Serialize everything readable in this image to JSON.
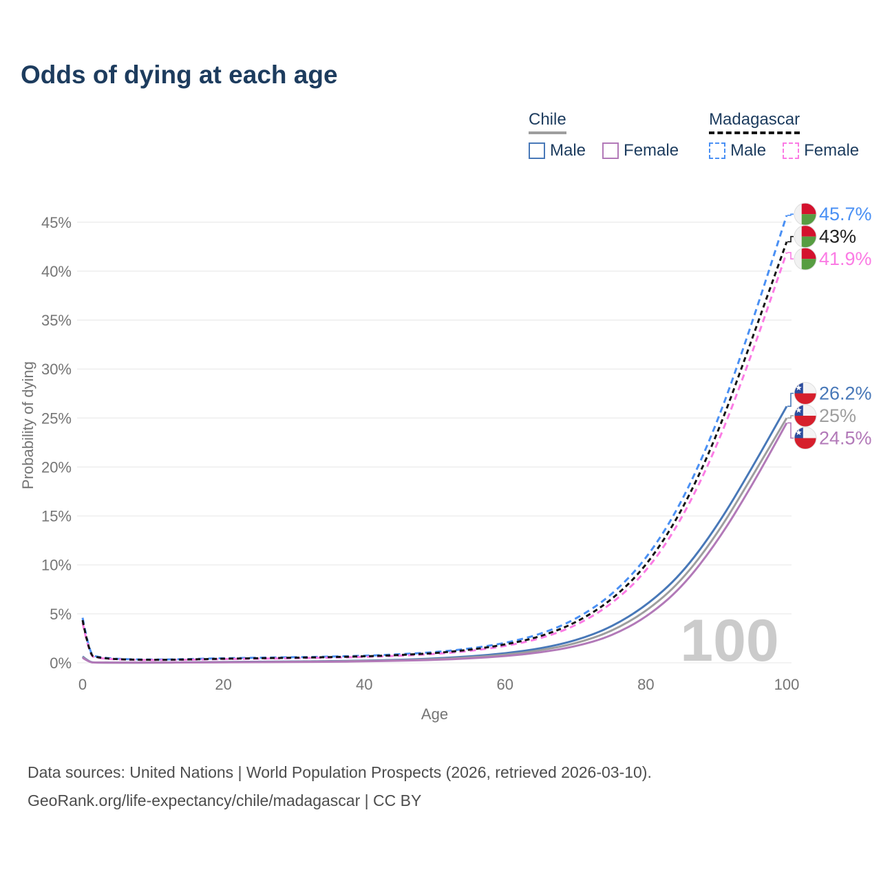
{
  "title": "Odds of dying at each age",
  "legend": {
    "groups": [
      {
        "name": "Chile",
        "line_style": "solid",
        "underline_color": "#9e9e9e",
        "items": [
          {
            "label": "Male",
            "color": "#4878b8"
          },
          {
            "label": "Female",
            "color": "#b279b8"
          }
        ]
      },
      {
        "name": "Madagascar",
        "line_style": "dashed",
        "underline_color": "#141414",
        "items": [
          {
            "label": "Male",
            "color": "#4a90f4"
          },
          {
            "label": "Female",
            "color": "#fb7be4"
          }
        ]
      }
    ]
  },
  "chart_data": {
    "type": "line",
    "title": "Odds of dying at each age",
    "xlabel": "Age",
    "ylabel": "Probability of dying",
    "xlim": [
      0,
      100
    ],
    "ylim": [
      0,
      47
    ],
    "xticks": [
      0,
      20,
      40,
      60,
      80,
      100
    ],
    "yticks": [
      0,
      5,
      10,
      15,
      20,
      25,
      30,
      35,
      40,
      45
    ],
    "ytick_suffix": "%",
    "grid": "horizontal",
    "watermark": "100",
    "x": [
      0,
      1,
      2,
      5,
      10,
      15,
      20,
      25,
      30,
      35,
      40,
      45,
      50,
      55,
      60,
      65,
      70,
      75,
      80,
      85,
      90,
      95,
      100
    ],
    "series": [
      {
        "name": "Madagascar Male",
        "country": "Madagascar",
        "sex": "Male",
        "color": "#4a90f4",
        "dash": "dashed",
        "flag": "madagascar",
        "end_label": "45.7%",
        "label_color": "#4a90f4",
        "values": [
          4.6,
          0.9,
          0.6,
          0.38,
          0.32,
          0.38,
          0.47,
          0.52,
          0.57,
          0.63,
          0.72,
          0.87,
          1.08,
          1.45,
          2.0,
          2.9,
          4.4,
          6.8,
          10.5,
          16.2,
          24.2,
          34.5,
          45.7
        ]
      },
      {
        "name": "Madagascar Both sexes",
        "country": "Madagascar",
        "sex": "Both",
        "color": "#141414",
        "dash": "dashed",
        "flag": "madagascar",
        "end_label": "43%",
        "label_color": "#222222",
        "values": [
          4.35,
          0.82,
          0.55,
          0.35,
          0.29,
          0.34,
          0.42,
          0.47,
          0.52,
          0.58,
          0.66,
          0.79,
          0.98,
          1.32,
          1.85,
          2.65,
          4.05,
          6.3,
          9.8,
          15.3,
          23.0,
          32.9,
          43.0
        ]
      },
      {
        "name": "Madagascar Female",
        "country": "Madagascar",
        "sex": "Female",
        "color": "#fb7be4",
        "dash": "dashed",
        "flag": "madagascar",
        "end_label": "41.9%",
        "label_color": "#fb7be4",
        "values": [
          4.1,
          0.75,
          0.5,
          0.32,
          0.27,
          0.31,
          0.38,
          0.42,
          0.47,
          0.53,
          0.6,
          0.72,
          0.9,
          1.2,
          1.7,
          2.45,
          3.75,
          5.9,
          9.2,
          14.5,
          21.9,
          31.4,
          41.9
        ]
      },
      {
        "name": "Chile Male",
        "country": "Chile",
        "sex": "Male",
        "color": "#4878b8",
        "dash": "solid",
        "flag": "chile",
        "end_label": "26.2%",
        "label_color": "#4878b8",
        "values": [
          0.65,
          0.05,
          0.03,
          0.02,
          0.02,
          0.05,
          0.09,
          0.11,
          0.13,
          0.17,
          0.22,
          0.3,
          0.44,
          0.65,
          0.95,
          1.45,
          2.25,
          3.6,
          5.8,
          9.0,
          13.8,
          19.8,
          26.2
        ]
      },
      {
        "name": "Chile Both sexes",
        "country": "Chile",
        "sex": "Both",
        "color": "#9e9e9e",
        "dash": "solid",
        "flag": "chile",
        "end_label": "25%",
        "label_color": "#9e9e9e",
        "values": [
          0.58,
          0.045,
          0.027,
          0.018,
          0.018,
          0.04,
          0.07,
          0.09,
          0.11,
          0.14,
          0.18,
          0.25,
          0.37,
          0.55,
          0.8,
          1.25,
          1.95,
          3.15,
          5.2,
          8.3,
          13.0,
          18.9,
          25.0
        ]
      },
      {
        "name": "Chile Female",
        "country": "Chile",
        "sex": "Female",
        "color": "#b279b8",
        "dash": "solid",
        "flag": "chile",
        "end_label": "24.5%",
        "label_color": "#b279b8",
        "values": [
          0.52,
          0.04,
          0.025,
          0.015,
          0.015,
          0.03,
          0.05,
          0.07,
          0.09,
          0.11,
          0.15,
          0.21,
          0.3,
          0.45,
          0.68,
          1.05,
          1.65,
          2.7,
          4.6,
          7.6,
          12.2,
          18.0,
          24.5
        ]
      }
    ]
  },
  "footer": {
    "line1": "Data sources: United Nations | World Population Prospects (2026, retrieved 2026-03-10).",
    "line2": "GeoRank.org/life-expectancy/chile/madagascar | CC BY"
  }
}
